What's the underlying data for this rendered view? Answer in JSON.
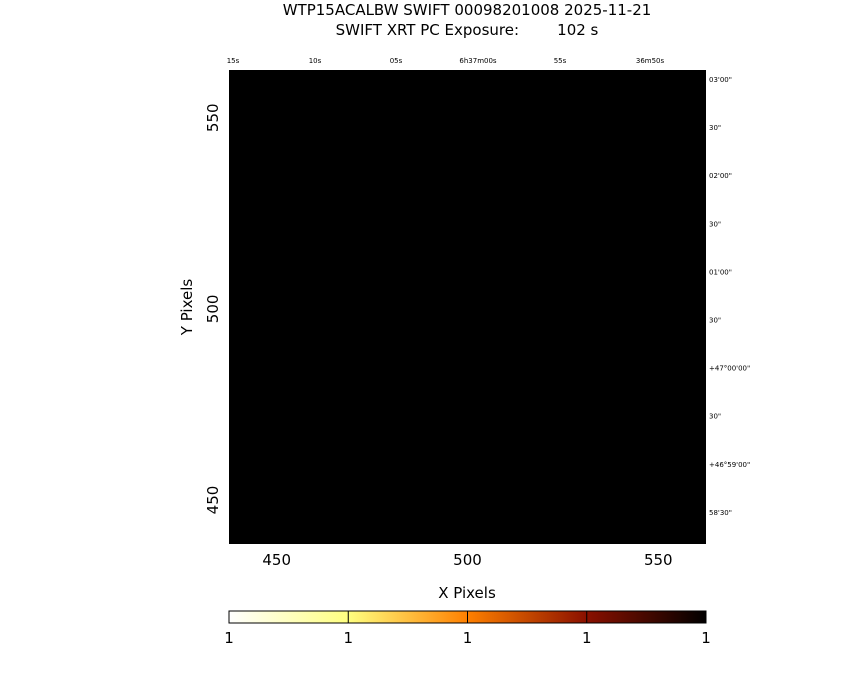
{
  "title_line1": "WTP15ACALBW SWIFT 00098201008 2025-11-21",
  "title_line2": "SWIFT XRT PC Exposure:        102 s",
  "chart_data": {
    "type": "heatmap",
    "title": "WTP15ACALBW SWIFT 00098201008 2025-11-21",
    "subtitle": "SWIFT XRT PC Exposure:        102 s",
    "xlabel": "X Pixels",
    "ylabel": "Y Pixels",
    "xlim": [
      437.5,
      562.5
    ],
    "ylim": [
      438.5,
      562.5
    ],
    "x_ticks": [
      450,
      500,
      550
    ],
    "y_ticks": [
      450,
      500,
      550
    ],
    "image_fill": "#000000",
    "grid": false,
    "top_ra_labels": [
      "15s",
      "10s",
      "05s",
      "6h37m00s",
      "55s",
      "36m50s"
    ],
    "right_dec_labels": [
      "03'00\"",
      "30\"",
      "02'00\"",
      "30\"",
      "01'00\"",
      "30\"",
      "+47°00'00\"",
      "30\"",
      "+46°59'00\"",
      "58'30\""
    ],
    "colorbar": {
      "colormap": "heat",
      "colors": [
        "#ffffff",
        "#ffff80",
        "#ff8000",
        "#800000",
        "#000000"
      ],
      "tick_labels": [
        "1",
        "1",
        "1",
        "1",
        "1"
      ]
    }
  }
}
